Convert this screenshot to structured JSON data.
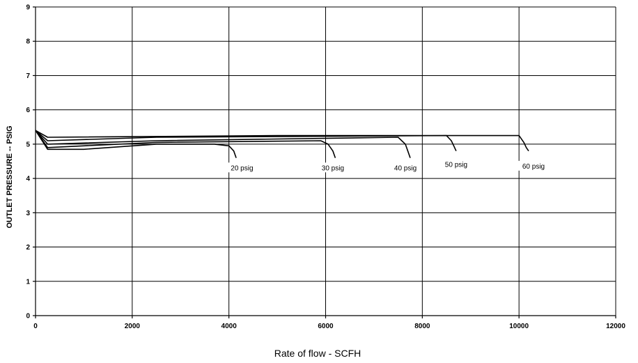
{
  "chart_data": {
    "type": "line",
    "title": "",
    "xlabel": "Rate of flow - SCFH",
    "ylabel": "OUTLET PRESSURE -- PSIG",
    "xlim": [
      0,
      12000
    ],
    "ylim": [
      0,
      9
    ],
    "x_ticks": [
      "0",
      "2000",
      "4000",
      "6000",
      "8000",
      "10000",
      "12000"
    ],
    "y_ticks": [
      "0",
      "1",
      "2",
      "3",
      "4",
      "5",
      "6",
      "7",
      "8",
      "9"
    ],
    "grid": true,
    "legend": "none",
    "series": [
      {
        "name": "20 psig",
        "points": [
          [
            0,
            5.4
          ],
          [
            250,
            4.85
          ],
          [
            1000,
            4.85
          ],
          [
            2500,
            5.0
          ],
          [
            3700,
            5.0
          ],
          [
            4000,
            4.95
          ],
          [
            4100,
            4.8
          ],
          [
            4150,
            4.6
          ]
        ]
      },
      {
        "name": "30 psig",
        "points": [
          [
            0,
            5.4
          ],
          [
            250,
            4.9
          ],
          [
            1000,
            4.95
          ],
          [
            2500,
            5.05
          ],
          [
            5900,
            5.1
          ],
          [
            6050,
            5.0
          ],
          [
            6150,
            4.8
          ],
          [
            6200,
            4.6
          ]
        ]
      },
      {
        "name": "40 psig",
        "points": [
          [
            0,
            5.4
          ],
          [
            250,
            5.0
          ],
          [
            2500,
            5.1
          ],
          [
            7500,
            5.2
          ],
          [
            7650,
            5.0
          ],
          [
            7700,
            4.8
          ],
          [
            7750,
            4.6
          ]
        ]
      },
      {
        "name": "50 psig",
        "points": [
          [
            0,
            5.4
          ],
          [
            250,
            5.1
          ],
          [
            2500,
            5.2
          ],
          [
            8500,
            5.25
          ],
          [
            8600,
            5.1
          ],
          [
            8650,
            4.95
          ],
          [
            8700,
            4.8
          ]
        ]
      },
      {
        "name": "60 psig",
        "points": [
          [
            0,
            5.4
          ],
          [
            250,
            5.2
          ],
          [
            5000,
            5.25
          ],
          [
            10000,
            5.25
          ],
          [
            10100,
            5.05
          ],
          [
            10150,
            4.9
          ],
          [
            10200,
            4.8
          ]
        ]
      }
    ],
    "annotations": [
      {
        "text": "20 psig",
        "x": 4270,
        "y": 4.3
      },
      {
        "text": "30 psig",
        "x": 6150,
        "y": 4.3
      },
      {
        "text": "40 psig",
        "x": 7650,
        "y": 4.3
      },
      {
        "text": "50 psig",
        "x": 8700,
        "y": 4.4
      },
      {
        "text": "60 psig",
        "x": 10300,
        "y": 4.35
      }
    ]
  }
}
